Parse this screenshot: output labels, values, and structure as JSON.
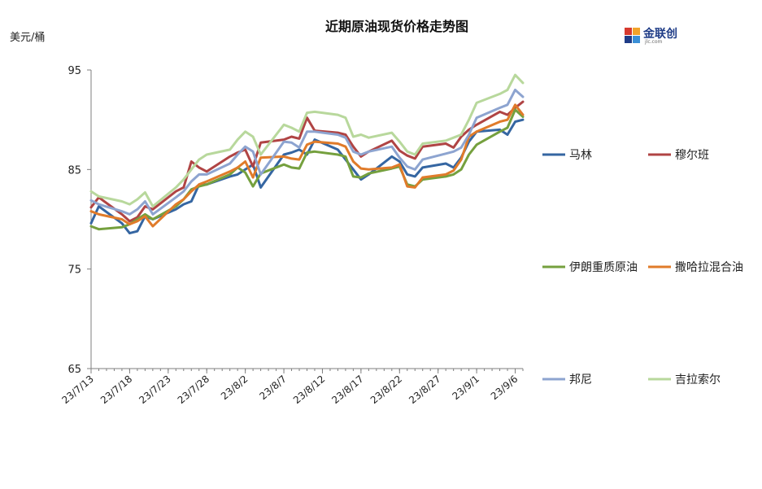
{
  "chart_data": {
    "type": "line",
    "title": "近期原油现货价格走势图",
    "ylabel": "美元/桶",
    "ylim": [
      65,
      95
    ],
    "yticks": [
      65,
      75,
      85,
      95
    ],
    "xtick_labels": [
      "23/7/13",
      "23/7/18",
      "23/7/23",
      "23/7/28",
      "23/8/2",
      "23/8/7",
      "23/8/12",
      "23/8/17",
      "23/8/22",
      "23/8/27",
      "23/9/1",
      "23/9/6"
    ],
    "x_start": "2023-07-13",
    "x_end": "2023-09-07",
    "grid": false,
    "legend_position": "right",
    "logo_text": "金联创",
    "logo_sub": "jlc.com",
    "series": [
      {
        "name": "马林",
        "color": "#3566a2",
        "points": [
          [
            "2023-07-13",
            79.6
          ],
          [
            "2023-07-14",
            81.3
          ],
          [
            "2023-07-17",
            79.6
          ],
          [
            "2023-07-18",
            78.6
          ],
          [
            "2023-07-19",
            78.8
          ],
          [
            "2023-07-20",
            80.3
          ],
          [
            "2023-07-21",
            80.0
          ],
          [
            "2023-07-24",
            81.0
          ],
          [
            "2023-07-25",
            81.5
          ],
          [
            "2023-07-26",
            81.8
          ],
          [
            "2023-07-27",
            83.5
          ],
          [
            "2023-07-28",
            83.5
          ],
          [
            "2023-07-31",
            84.3
          ],
          [
            "2023-08-01",
            84.5
          ],
          [
            "2023-08-02",
            85.0
          ],
          [
            "2023-08-03",
            85.5
          ],
          [
            "2023-08-04",
            83.2
          ],
          [
            "2023-08-07",
            86.5
          ],
          [
            "2023-08-08",
            86.7
          ],
          [
            "2023-08-09",
            87.0
          ],
          [
            "2023-08-10",
            86.5
          ],
          [
            "2023-08-11",
            88.0
          ],
          [
            "2023-08-14",
            87.0
          ],
          [
            "2023-08-15",
            86.0
          ],
          [
            "2023-08-16",
            85.0
          ],
          [
            "2023-08-17",
            84.0
          ],
          [
            "2023-08-18",
            84.5
          ],
          [
            "2023-08-21",
            86.3
          ],
          [
            "2023-08-22",
            85.8
          ],
          [
            "2023-08-23",
            84.5
          ],
          [
            "2023-08-24",
            84.3
          ],
          [
            "2023-08-25",
            85.2
          ],
          [
            "2023-08-28",
            85.6
          ],
          [
            "2023-08-29",
            85.2
          ],
          [
            "2023-08-30",
            86.2
          ],
          [
            "2023-08-31",
            87.8
          ],
          [
            "2023-09-01",
            88.8
          ],
          [
            "2023-09-04",
            89.0
          ],
          [
            "2023-09-05",
            88.5
          ],
          [
            "2023-09-06",
            89.8
          ],
          [
            "2023-09-07",
            90.0
          ]
        ]
      },
      {
        "name": "穆尔班",
        "color": "#b04444",
        "points": [
          [
            "2023-07-13",
            81.2
          ],
          [
            "2023-07-14",
            82.2
          ],
          [
            "2023-07-17",
            80.5
          ],
          [
            "2023-07-18",
            79.8
          ],
          [
            "2023-07-19",
            80.2
          ],
          [
            "2023-07-20",
            81.3
          ],
          [
            "2023-07-21",
            81.0
          ],
          [
            "2023-07-24",
            82.8
          ],
          [
            "2023-07-25",
            83.2
          ],
          [
            "2023-07-26",
            85.8
          ],
          [
            "2023-07-27",
            85.2
          ],
          [
            "2023-07-28",
            84.8
          ],
          [
            "2023-07-31",
            86.3
          ],
          [
            "2023-08-01",
            86.7
          ],
          [
            "2023-08-02",
            87.0
          ],
          [
            "2023-08-03",
            85.3
          ],
          [
            "2023-08-04",
            87.7
          ],
          [
            "2023-08-07",
            88.0
          ],
          [
            "2023-08-08",
            88.3
          ],
          [
            "2023-08-09",
            88.1
          ],
          [
            "2023-08-10",
            90.2
          ],
          [
            "2023-08-11",
            88.9
          ],
          [
            "2023-08-14",
            88.7
          ],
          [
            "2023-08-15",
            88.5
          ],
          [
            "2023-08-16",
            87.3
          ],
          [
            "2023-08-17",
            86.3
          ],
          [
            "2023-08-18",
            86.8
          ],
          [
            "2023-08-21",
            87.9
          ],
          [
            "2023-08-22",
            86.9
          ],
          [
            "2023-08-23",
            86.4
          ],
          [
            "2023-08-24",
            86.1
          ],
          [
            "2023-08-25",
            87.3
          ],
          [
            "2023-08-28",
            87.6
          ],
          [
            "2023-08-29",
            87.2
          ],
          [
            "2023-08-30",
            88.3
          ],
          [
            "2023-08-31",
            89.0
          ],
          [
            "2023-09-01",
            89.5
          ],
          [
            "2023-09-04",
            90.8
          ],
          [
            "2023-09-05",
            90.5
          ],
          [
            "2023-09-06",
            91.2
          ],
          [
            "2023-09-07",
            91.8
          ]
        ]
      },
      {
        "name": "伊朗重质原油",
        "color": "#75a03e",
        "points": [
          [
            "2023-07-13",
            79.3
          ],
          [
            "2023-07-14",
            79.0
          ],
          [
            "2023-07-17",
            79.2
          ],
          [
            "2023-07-18",
            79.5
          ],
          [
            "2023-07-19",
            80.0
          ],
          [
            "2023-07-20",
            80.5
          ],
          [
            "2023-07-21",
            80.0
          ],
          [
            "2023-07-24",
            81.3
          ],
          [
            "2023-07-25",
            82.0
          ],
          [
            "2023-07-26",
            83.0
          ],
          [
            "2023-07-27",
            83.3
          ],
          [
            "2023-07-28",
            83.5
          ],
          [
            "2023-07-31",
            84.5
          ],
          [
            "2023-08-01",
            85.2
          ],
          [
            "2023-08-02",
            84.7
          ],
          [
            "2023-08-03",
            83.3
          ],
          [
            "2023-08-04",
            84.6
          ],
          [
            "2023-08-07",
            85.5
          ],
          [
            "2023-08-08",
            85.2
          ],
          [
            "2023-08-09",
            85.1
          ],
          [
            "2023-08-10",
            86.7
          ],
          [
            "2023-08-11",
            86.8
          ],
          [
            "2023-08-14",
            86.5
          ],
          [
            "2023-08-15",
            86.3
          ],
          [
            "2023-08-16",
            84.3
          ],
          [
            "2023-08-17",
            84.2
          ],
          [
            "2023-08-18",
            84.6
          ],
          [
            "2023-08-21",
            85.1
          ],
          [
            "2023-08-22",
            85.3
          ],
          [
            "2023-08-23",
            83.5
          ],
          [
            "2023-08-24",
            83.3
          ],
          [
            "2023-08-25",
            84.0
          ],
          [
            "2023-08-28",
            84.3
          ],
          [
            "2023-08-29",
            84.5
          ],
          [
            "2023-08-30",
            85.0
          ],
          [
            "2023-08-31",
            86.5
          ],
          [
            "2023-09-01",
            87.5
          ],
          [
            "2023-09-04",
            88.8
          ],
          [
            "2023-09-05",
            89.2
          ],
          [
            "2023-09-06",
            91.0
          ],
          [
            "2023-09-07",
            90.3
          ]
        ]
      },
      {
        "name": "撒哈拉混合油",
        "color": "#e07b2a",
        "points": [
          [
            "2023-07-13",
            80.8
          ],
          [
            "2023-07-14",
            80.5
          ],
          [
            "2023-07-17",
            80.0
          ],
          [
            "2023-07-18",
            79.5
          ],
          [
            "2023-07-19",
            79.8
          ],
          [
            "2023-07-20",
            80.3
          ],
          [
            "2023-07-21",
            79.3
          ],
          [
            "2023-07-24",
            81.5
          ],
          [
            "2023-07-25",
            82.0
          ],
          [
            "2023-07-26",
            82.8
          ],
          [
            "2023-07-27",
            83.5
          ],
          [
            "2023-07-28",
            83.8
          ],
          [
            "2023-07-31",
            84.8
          ],
          [
            "2023-08-01",
            85.2
          ],
          [
            "2023-08-02",
            85.8
          ],
          [
            "2023-08-03",
            84.2
          ],
          [
            "2023-08-04",
            86.2
          ],
          [
            "2023-08-07",
            86.3
          ],
          [
            "2023-08-08",
            86.1
          ],
          [
            "2023-08-09",
            86.0
          ],
          [
            "2023-08-10",
            87.5
          ],
          [
            "2023-08-11",
            87.8
          ],
          [
            "2023-08-14",
            87.6
          ],
          [
            "2023-08-15",
            87.3
          ],
          [
            "2023-08-16",
            85.8
          ],
          [
            "2023-08-17",
            85.1
          ],
          [
            "2023-08-18",
            85.0
          ],
          [
            "2023-08-21",
            85.2
          ],
          [
            "2023-08-22",
            85.5
          ],
          [
            "2023-08-23",
            83.3
          ],
          [
            "2023-08-24",
            83.2
          ],
          [
            "2023-08-25",
            84.2
          ],
          [
            "2023-08-28",
            84.5
          ],
          [
            "2023-08-29",
            84.9
          ],
          [
            "2023-08-30",
            86.0
          ],
          [
            "2023-08-31",
            88.3
          ],
          [
            "2023-09-01",
            88.8
          ],
          [
            "2023-09-04",
            89.8
          ],
          [
            "2023-09-05",
            90.0
          ],
          [
            "2023-09-06",
            91.5
          ],
          [
            "2023-09-07",
            90.5
          ]
        ]
      },
      {
        "name": "邦尼",
        "color": "#8da4d0",
        "points": [
          [
            "2023-07-13",
            81.9
          ],
          [
            "2023-07-14",
            81.5
          ],
          [
            "2023-07-17",
            80.8
          ],
          [
            "2023-07-18",
            80.5
          ],
          [
            "2023-07-19",
            81.0
          ],
          [
            "2023-07-20",
            81.8
          ],
          [
            "2023-07-21",
            80.5
          ],
          [
            "2023-07-24",
            82.2
          ],
          [
            "2023-07-25",
            82.8
          ],
          [
            "2023-07-26",
            83.8
          ],
          [
            "2023-07-27",
            84.5
          ],
          [
            "2023-07-28",
            84.5
          ],
          [
            "2023-07-31",
            85.6
          ],
          [
            "2023-08-01",
            86.5
          ],
          [
            "2023-08-02",
            87.3
          ],
          [
            "2023-08-03",
            86.8
          ],
          [
            "2023-08-04",
            84.5
          ],
          [
            "2023-08-07",
            87.8
          ],
          [
            "2023-08-08",
            87.7
          ],
          [
            "2023-08-09",
            87.2
          ],
          [
            "2023-08-10",
            88.8
          ],
          [
            "2023-08-11",
            88.8
          ],
          [
            "2023-08-14",
            88.5
          ],
          [
            "2023-08-15",
            88.2
          ],
          [
            "2023-08-16",
            86.8
          ],
          [
            "2023-08-17",
            86.5
          ],
          [
            "2023-08-18",
            86.8
          ],
          [
            "2023-08-21",
            87.3
          ],
          [
            "2023-08-22",
            86.2
          ],
          [
            "2023-08-23",
            85.3
          ],
          [
            "2023-08-24",
            85.0
          ],
          [
            "2023-08-25",
            86.0
          ],
          [
            "2023-08-28",
            86.6
          ],
          [
            "2023-08-29",
            86.8
          ],
          [
            "2023-08-30",
            87.2
          ],
          [
            "2023-08-31",
            88.5
          ],
          [
            "2023-09-01",
            90.2
          ],
          [
            "2023-09-04",
            91.2
          ],
          [
            "2023-09-05",
            91.5
          ],
          [
            "2023-09-06",
            93.0
          ],
          [
            "2023-09-07",
            92.3
          ]
        ]
      },
      {
        "name": "吉拉索尔",
        "color": "#b8d89c",
        "points": [
          [
            "2023-07-13",
            82.8
          ],
          [
            "2023-07-14",
            82.3
          ],
          [
            "2023-07-17",
            81.8
          ],
          [
            "2023-07-18",
            81.5
          ],
          [
            "2023-07-19",
            82.0
          ],
          [
            "2023-07-20",
            82.7
          ],
          [
            "2023-07-21",
            81.3
          ],
          [
            "2023-07-24",
            83.2
          ],
          [
            "2023-07-25",
            84.0
          ],
          [
            "2023-07-26",
            85.0
          ],
          [
            "2023-07-27",
            86.0
          ],
          [
            "2023-07-28",
            86.5
          ],
          [
            "2023-07-31",
            87.0
          ],
          [
            "2023-08-01",
            88.0
          ],
          [
            "2023-08-02",
            88.8
          ],
          [
            "2023-08-03",
            88.3
          ],
          [
            "2023-08-04",
            86.5
          ],
          [
            "2023-08-07",
            89.5
          ],
          [
            "2023-08-08",
            89.2
          ],
          [
            "2023-08-09",
            88.8
          ],
          [
            "2023-08-10",
            90.7
          ],
          [
            "2023-08-11",
            90.8
          ],
          [
            "2023-08-14",
            90.5
          ],
          [
            "2023-08-15",
            90.2
          ],
          [
            "2023-08-16",
            88.3
          ],
          [
            "2023-08-17",
            88.5
          ],
          [
            "2023-08-18",
            88.2
          ],
          [
            "2023-08-21",
            88.7
          ],
          [
            "2023-08-22",
            87.8
          ],
          [
            "2023-08-23",
            86.8
          ],
          [
            "2023-08-24",
            86.5
          ],
          [
            "2023-08-25",
            87.6
          ],
          [
            "2023-08-28",
            87.9
          ],
          [
            "2023-08-29",
            88.2
          ],
          [
            "2023-08-30",
            88.5
          ],
          [
            "2023-08-31",
            90.0
          ],
          [
            "2023-09-01",
            91.7
          ],
          [
            "2023-09-04",
            92.6
          ],
          [
            "2023-09-05",
            93.0
          ],
          [
            "2023-09-06",
            94.5
          ],
          [
            "2023-09-07",
            93.7
          ]
        ]
      }
    ]
  }
}
